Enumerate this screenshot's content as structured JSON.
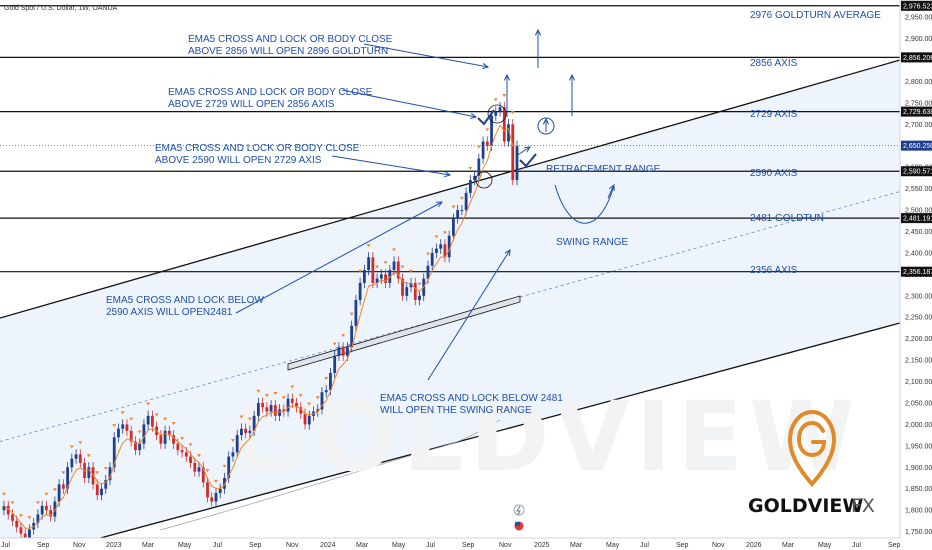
{
  "chart_title": "Gold Spot / U.S. Dollar, 1W, OANDA",
  "currency": "USD",
  "watermark": "GOLDVIEW FX",
  "brand": {
    "name": "GOLDVIEW",
    "suffix": "FX",
    "accent": "#e08a2a"
  },
  "colors": {
    "accent_blue": "#1f4fa8",
    "bull": "#1e3f8f",
    "bear": "#d32b2b",
    "channel_fill": "#e8f1fb",
    "ema": "#f2852b"
  },
  "levels": [
    {
      "value": 2976.523,
      "label": "2976 GOLDTURN AVERAGE",
      "tag": "2,976.523",
      "kind": "line"
    },
    {
      "value": 2856.206,
      "label": "2856 AXIS",
      "tag": "2,856.206",
      "kind": "line"
    },
    {
      "value": 2729.638,
      "label": "2729 AXIS",
      "tag": "2,729.638",
      "kind": "line"
    },
    {
      "value": 2590.571,
      "label": "2590 AXIS",
      "tag": "2,590.571",
      "kind": "line"
    },
    {
      "value": 2481.191,
      "label": "2481 GOLDTUN",
      "tag": "2,481.191",
      "kind": "line"
    },
    {
      "value": 2356.187,
      "label": "2356 AXIS",
      "tag": "2,356.187",
      "kind": "line"
    }
  ],
  "price_tag": {
    "value": 2650.25,
    "text": "2,650.250"
  },
  "annotations": [
    {
      "lines": [
        "EMA5 CROSS AND LOCK OR BODY CLOSE",
        "ABOVE 2856 WILL OPEN 2896 GOLDTURN"
      ]
    },
    {
      "lines": [
        "EMA5 CROSS AND LOCK OR BODY CLOSE",
        "ABOVE 2729 WILL OPEN 2856 AXIS"
      ]
    },
    {
      "lines": [
        "EMA5 CROSS AND LOCK OR BODY CLOSE",
        "ABOVE 2590 WILL OPEN 2729 AXIS"
      ]
    },
    {
      "lines": [
        "EMA5 CROSS AND LOCK BELOW",
        "2590 AXIS WILL OPEN2481"
      ]
    },
    {
      "lines": [
        "EMA5 CROSS AND LOCK BELOW 2481",
        "WILL OPEN THE SWING RANGE"
      ]
    },
    {
      "lines": [
        "RETRACEMENT RANGE"
      ]
    },
    {
      "lines": [
        "SWING RANGE"
      ]
    }
  ],
  "chart_data": {
    "type": "line",
    "title": "Gold Spot / U.S. Dollar, 1W, OANDA",
    "y_axis": {
      "ticks": [
        1750,
        1800,
        1850,
        1900,
        1950,
        2000,
        2050,
        2100,
        2150,
        2200,
        2250,
        2300,
        2350,
        2400,
        2450,
        2500,
        2550,
        2600,
        2650,
        2700,
        2750,
        2800,
        2850,
        2900,
        2950
      ],
      "tick_labels": [
        "1,750.000",
        "1,800.000",
        "1,850.000",
        "1,900.000",
        "1,950.000",
        "2,000.000",
        "2,050.000",
        "2,100.000",
        "2,150.000",
        "2,200.000",
        "2,250.000",
        "2,300.000",
        "2,350.000",
        "2,400.000",
        "2,450.000",
        "2,500.000",
        "2,550.000",
        "2,600.000",
        "2,650.000",
        "2,700.000",
        "2,750.000",
        "2,800.000",
        "2,850.000",
        "2,900.000",
        "2,950.000"
      ],
      "range": [
        1735,
        2990
      ]
    },
    "x_axis": {
      "labels": [
        "Jul",
        "Sep",
        "Nov",
        "2023",
        "Mar",
        "May",
        "Jul",
        "Sep",
        "Nov",
        "2024",
        "Mar",
        "May",
        "Jul",
        "Sep",
        "Nov",
        "2025",
        "Mar",
        "May",
        "Jul",
        "Sep",
        "Nov",
        "2026",
        "Mar",
        "May",
        "Jul",
        "Sep"
      ]
    },
    "series": [
      {
        "values": [
          1810,
          1790,
          1775,
          1760,
          1745,
          1735,
          1755,
          1770,
          1790,
          1810,
          1800,
          1785,
          1820,
          1860,
          1850,
          1900,
          1920,
          1930,
          1910,
          1875,
          1900,
          1860,
          1835,
          1850,
          1870,
          1900,
          1970,
          1990,
          2000,
          1985,
          1960,
          1940,
          1955,
          2000,
          2020,
          1995,
          1975,
          1955,
          1985,
          1975,
          1955,
          1940,
          1935,
          1925,
          1910,
          1890,
          1900,
          1865,
          1830,
          1820,
          1840,
          1850,
          1875,
          1925,
          1935,
          1975,
          1990,
          1980,
          1985,
          2020,
          2050,
          2040,
          2030,
          2045,
          2020,
          2035,
          2030,
          2060,
          2050,
          2040,
          2025,
          2000,
          2020,
          2030,
          2035,
          2075,
          2080,
          2120,
          2160,
          2180,
          2160,
          2180,
          2230,
          2290,
          2330,
          2360,
          2390,
          2330,
          2340,
          2350,
          2330,
          2360,
          2380,
          2340,
          2300,
          2320,
          2330,
          2290,
          2300,
          2340,
          2370,
          2400,
          2410,
          2420,
          2390,
          2440,
          2480,
          2500,
          2500,
          2540,
          2570,
          2580,
          2620,
          2660,
          2650,
          2720,
          2730,
          2740,
          2660,
          2700,
          2570,
          2650
        ]
      }
    ]
  }
}
